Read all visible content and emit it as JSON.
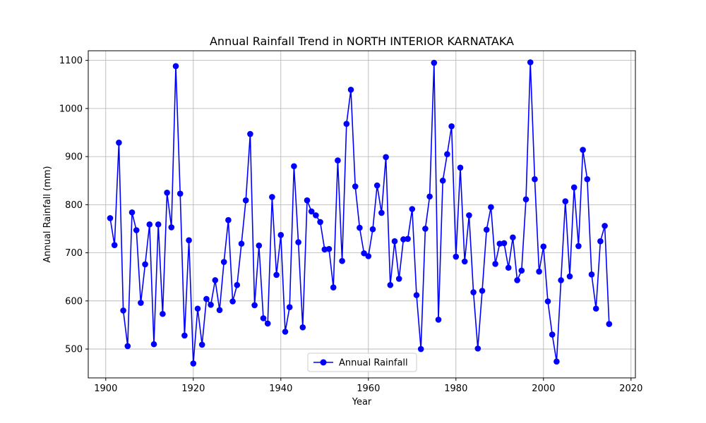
{
  "chart_data": {
    "type": "line",
    "title": "Annual Rainfall Trend in NORTH INTERIOR KARNATAKA",
    "xlabel": "Year",
    "ylabel": "Annual Rainfall (mm)",
    "xlim": [
      1896,
      2021
    ],
    "ylim": [
      440,
      1120
    ],
    "xticks": [
      1900,
      1920,
      1940,
      1960,
      1980,
      2000,
      2020
    ],
    "yticks": [
      500,
      600,
      700,
      800,
      900,
      1000,
      1100
    ],
    "xtick_labels": [
      "1900",
      "1920",
      "1940",
      "1960",
      "1980",
      "2000",
      "2020"
    ],
    "ytick_labels": [
      "500",
      "600",
      "700",
      "800",
      "900",
      "1000",
      "1100"
    ],
    "grid": true,
    "legend_position": "bottom-center",
    "series": [
      {
        "name": "Annual Rainfall",
        "color": "#0000ff",
        "marker": "circle",
        "x": [
          1901,
          1902,
          1903,
          1904,
          1905,
          1906,
          1907,
          1908,
          1909,
          1910,
          1911,
          1912,
          1913,
          1914,
          1915,
          1916,
          1917,
          1918,
          1919,
          1920,
          1921,
          1922,
          1923,
          1924,
          1925,
          1926,
          1927,
          1928,
          1929,
          1930,
          1931,
          1932,
          1933,
          1934,
          1935,
          1936,
          1937,
          1938,
          1939,
          1940,
          1941,
          1942,
          1943,
          1944,
          1945,
          1946,
          1947,
          1948,
          1949,
          1950,
          1951,
          1952,
          1953,
          1954,
          1955,
          1956,
          1957,
          1958,
          1959,
          1960,
          1961,
          1962,
          1963,
          1964,
          1965,
          1966,
          1967,
          1968,
          1969,
          1970,
          1971,
          1972,
          1973,
          1974,
          1975,
          1976,
          1977,
          1978,
          1979,
          1980,
          1981,
          1982,
          1983,
          1984,
          1985,
          1986,
          1987,
          1988,
          1989,
          1990,
          1991,
          1992,
          1993,
          1994,
          1995,
          1996,
          1997,
          1998,
          1999,
          2000,
          2001,
          2002,
          2003,
          2004,
          2005,
          2006,
          2007,
          2008,
          2009,
          2010,
          2011,
          2012,
          2013,
          2014,
          2015
        ],
        "y": [
          772,
          716,
          929,
          580,
          506,
          784,
          747,
          596,
          676,
          759,
          510,
          759,
          573,
          825,
          753,
          1088,
          823,
          528,
          726,
          470,
          584,
          509,
          604,
          592,
          643,
          581,
          681,
          768,
          599,
          633,
          719,
          809,
          947,
          591,
          715,
          564,
          553,
          816,
          654,
          737,
          536,
          587,
          880,
          722,
          545,
          809,
          786,
          778,
          764,
          707,
          708,
          628,
          892,
          683,
          968,
          1039,
          838,
          752,
          699,
          693,
          749,
          840,
          783,
          899,
          633,
          724,
          646,
          728,
          729,
          791,
          612,
          500,
          750,
          817,
          1095,
          561,
          850,
          905,
          963,
          692,
          877,
          682,
          778,
          618,
          501,
          621,
          748,
          795,
          677,
          719,
          720,
          669,
          732,
          643,
          663,
          811,
          1096,
          853,
          661,
          713,
          599,
          530,
          474,
          643,
          807,
          651,
          836,
          714,
          914,
          853,
          655,
          584,
          724,
          756,
          552
        ]
      }
    ]
  }
}
